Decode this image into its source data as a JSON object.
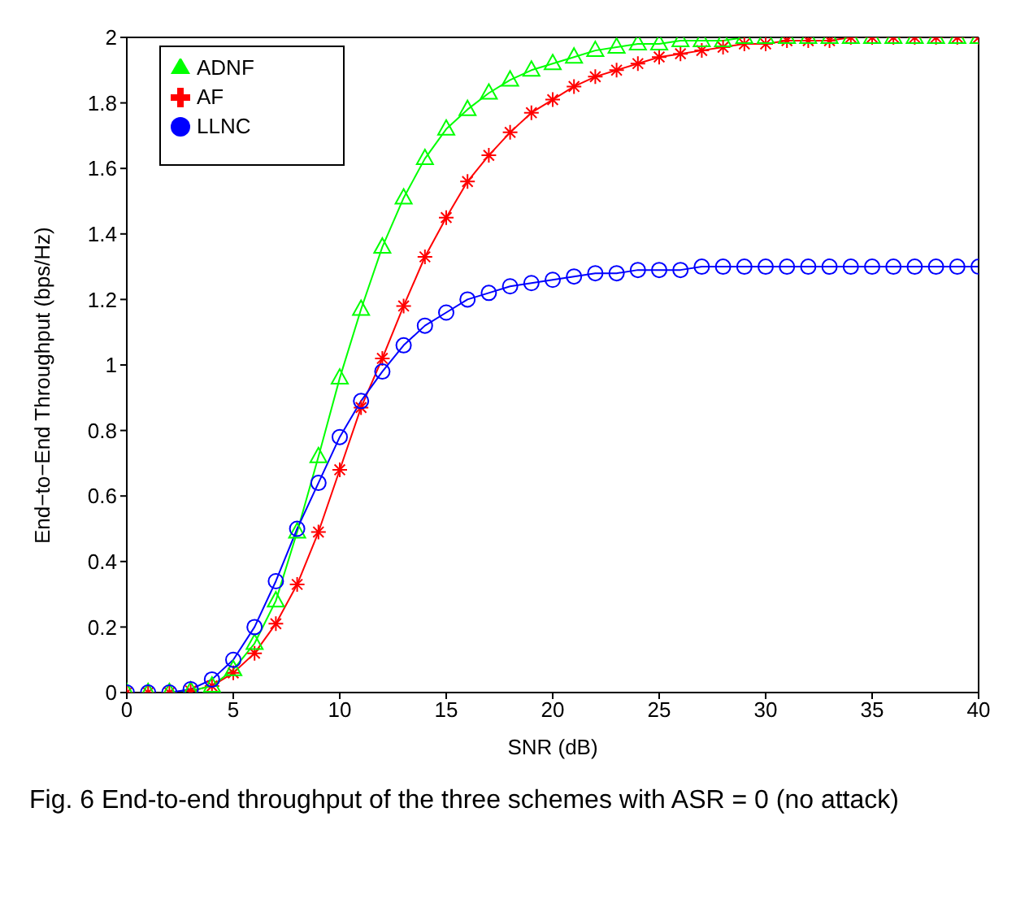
{
  "chart_data": {
    "type": "line",
    "xlabel": "SNR (dB)",
    "ylabel": "End−to−End Throughput (bps/Hz)",
    "x": [
      0,
      1,
      2,
      3,
      4,
      5,
      6,
      7,
      8,
      9,
      10,
      11,
      12,
      13,
      14,
      15,
      16,
      17,
      18,
      19,
      20,
      21,
      22,
      23,
      24,
      25,
      26,
      27,
      28,
      29,
      30,
      31,
      32,
      33,
      34,
      35,
      36,
      37,
      38,
      39,
      40
    ],
    "series": [
      {
        "name": "AF",
        "color": "#ff0000",
        "marker": "cross",
        "values": [
          0,
          0,
          0,
          0.005,
          0.02,
          0.06,
          0.12,
          0.21,
          0.33,
          0.49,
          0.68,
          0.87,
          1.02,
          1.18,
          1.33,
          1.45,
          1.56,
          1.64,
          1.71,
          1.77,
          1.81,
          1.85,
          1.88,
          1.9,
          1.92,
          1.94,
          1.95,
          1.96,
          1.97,
          1.98,
          1.98,
          1.99,
          1.99,
          1.99,
          2,
          2,
          2,
          2,
          2,
          2,
          2
        ]
      },
      {
        "name": "ADNF",
        "color": "#00ff00",
        "marker": "triangle",
        "values": [
          0,
          0,
          0,
          0.005,
          0.02,
          0.07,
          0.15,
          0.28,
          0.49,
          0.72,
          0.96,
          1.17,
          1.36,
          1.51,
          1.63,
          1.72,
          1.78,
          1.83,
          1.87,
          1.9,
          1.92,
          1.94,
          1.96,
          1.97,
          1.98,
          1.98,
          1.99,
          1.99,
          1.99,
          2,
          2,
          2,
          2,
          2,
          2,
          2,
          2,
          2,
          2,
          2,
          2
        ]
      },
      {
        "name": "LLNC",
        "color": "#0000ff",
        "marker": "circle",
        "values": [
          0,
          0,
          0,
          0.01,
          0.04,
          0.1,
          0.2,
          0.34,
          0.5,
          0.64,
          0.78,
          0.89,
          0.98,
          1.06,
          1.12,
          1.16,
          1.2,
          1.22,
          1.24,
          1.25,
          1.26,
          1.27,
          1.28,
          1.28,
          1.29,
          1.29,
          1.29,
          1.3,
          1.3,
          1.3,
          1.3,
          1.3,
          1.3,
          1.3,
          1.3,
          1.3,
          1.3,
          1.3,
          1.3,
          1.3,
          1.3
        ]
      }
    ],
    "xlim": [
      0,
      40
    ],
    "xticks": [
      0,
      5,
      10,
      15,
      20,
      25,
      30,
      35,
      40
    ],
    "ylim": [
      0,
      2
    ],
    "yticks": [
      0,
      0.2,
      0.4,
      0.6,
      0.8,
      1,
      1.2,
      1.4,
      1.6,
      1.8,
      2
    ],
    "grid": false,
    "legend": "top left",
    "line_style": "solid",
    "annotations": [
      "Fig. 6 End-to-end throughput of the three schemes with ASR = 0 (no attack)"
    ]
  }
}
